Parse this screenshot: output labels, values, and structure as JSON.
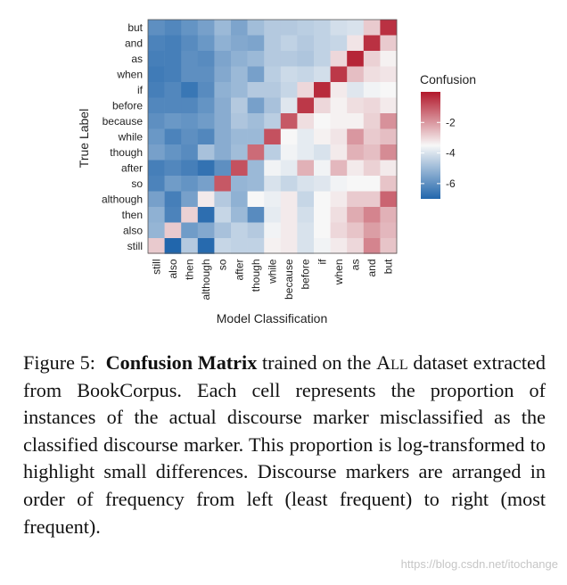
{
  "chart_data": {
    "type": "heatmap",
    "title": "",
    "xlabel": "Model Classification",
    "ylabel": "True Label",
    "x_categories": [
      "still",
      "also",
      "then",
      "although",
      "so",
      "after",
      "though",
      "while",
      "because",
      "before",
      "if",
      "when",
      "as",
      "and",
      "but"
    ],
    "y_categories_top_to_bottom": [
      "but",
      "and",
      "as",
      "when",
      "if",
      "before",
      "because",
      "while",
      "though",
      "after",
      "so",
      "although",
      "then",
      "also",
      "still"
    ],
    "values_rows_top_to_bottom": [
      [
        -6.0,
        -6.2,
        -5.9,
        -5.6,
        -5.0,
        -5.5,
        -4.9,
        -4.6,
        -4.6,
        -4.5,
        -4.4,
        -4.1,
        -4.0,
        -2.8,
        -0.4
      ],
      [
        -6.3,
        -6.4,
        -6.1,
        -5.8,
        -5.2,
        -5.4,
        -5.5,
        -4.6,
        -4.4,
        -4.6,
        -4.4,
        -4.3,
        -3.2,
        -0.4,
        -2.8
      ],
      [
        -6.4,
        -6.4,
        -6.0,
        -6.1,
        -5.5,
        -5.2,
        -5.0,
        -4.6,
        -4.6,
        -4.7,
        -4.4,
        -3.0,
        -0.2,
        -2.9,
        -3.4
      ],
      [
        -6.5,
        -6.4,
        -6.0,
        -6.0,
        -5.4,
        -5.0,
        -5.6,
        -4.5,
        -4.2,
        -4.3,
        -4.1,
        -0.5,
        -2.6,
        -3.1,
        -3.2
      ],
      [
        -6.4,
        -6.2,
        -6.6,
        -6.1,
        -5.2,
        -5.0,
        -4.6,
        -4.6,
        -4.3,
        -3.0,
        -0.3,
        -3.3,
        -3.9,
        -3.6,
        -3.5
      ],
      [
        -6.2,
        -6.2,
        -6.2,
        -5.9,
        -5.3,
        -4.6,
        -5.6,
        -4.8,
        -3.9,
        -0.5,
        -3.0,
        -3.4,
        -3.1,
        -3.0,
        -3.3
      ],
      [
        -6.0,
        -5.8,
        -5.9,
        -5.7,
        -5.3,
        -4.7,
        -4.9,
        -4.5,
        -1.0,
        -3.1,
        -3.5,
        -3.4,
        -3.4,
        -2.9,
        -1.9
      ],
      [
        -5.8,
        -6.3,
        -6.0,
        -6.2,
        -5.3,
        -5.0,
        -5.0,
        -0.9,
        -3.5,
        -3.8,
        -3.4,
        -3.2,
        -2.0,
        -2.8,
        -2.6
      ],
      [
        -5.6,
        -5.9,
        -6.1,
        -4.8,
        -5.3,
        -4.9,
        -1.3,
        -4.5,
        -3.6,
        -3.8,
        -4.0,
        -3.3,
        -2.4,
        -2.6,
        -1.8
      ],
      [
        -6.4,
        -6.2,
        -6.4,
        -6.7,
        -6.0,
        -0.9,
        -5.0,
        -3.6,
        -3.8,
        -2.4,
        -3.6,
        -2.5,
        -3.3,
        -2.9,
        -3.3
      ],
      [
        -6.3,
        -5.7,
        -5.9,
        -5.6,
        -1.0,
        -5.1,
        -5.0,
        -4.0,
        -4.3,
        -4.0,
        -3.9,
        -3.6,
        -3.5,
        -3.5,
        -2.7
      ],
      [
        -5.6,
        -6.4,
        -5.6,
        -3.3,
        -4.6,
        -5.2,
        -3.5,
        -3.7,
        -3.3,
        -4.3,
        -3.5,
        -3.3,
        -2.8,
        -2.8,
        -1.2
      ],
      [
        -5.2,
        -6.3,
        -2.9,
        -6.8,
        -4.3,
        -5.0,
        -6.1,
        -3.8,
        -3.3,
        -4.1,
        -3.5,
        -3.1,
        -2.3,
        -1.7,
        -2.4
      ],
      [
        -5.1,
        -2.8,
        -5.7,
        -5.4,
        -4.8,
        -4.4,
        -4.6,
        -3.6,
        -3.3,
        -4.0,
        -3.5,
        -3.0,
        -2.7,
        -2.1,
        -2.5
      ],
      [
        -2.8,
        -7.0,
        -4.6,
        -6.9,
        -4.3,
        -4.4,
        -4.4,
        -3.4,
        -3.3,
        -4.0,
        -3.6,
        -3.3,
        -3.0,
        -1.7,
        -2.7
      ]
    ],
    "legend": {
      "title": "Confusion",
      "ticks": [
        -2,
        -4,
        -6
      ],
      "position": "right"
    },
    "color_range": [
      -7.0,
      0.0
    ],
    "colors": {
      "low": "#2166ac",
      "mid": "#f7f7f7",
      "high": "#b2182b"
    },
    "grid": false
  },
  "caption": {
    "label": "Figure 5:",
    "bold": "Confusion Matrix",
    "text_before_sc": "trained on the",
    "smallcaps": "All",
    "text_after": "dataset extracted from BookCorpus. Each cell represents the proportion of instances of the actual discourse marker misclassified as the classified discourse marker. This proportion is log-transformed to highlight small differences. Discourse markers are arranged in order of frequency from left (least frequent) to right (most frequent)."
  },
  "watermark": "https://blog.csdn.net/itochange"
}
